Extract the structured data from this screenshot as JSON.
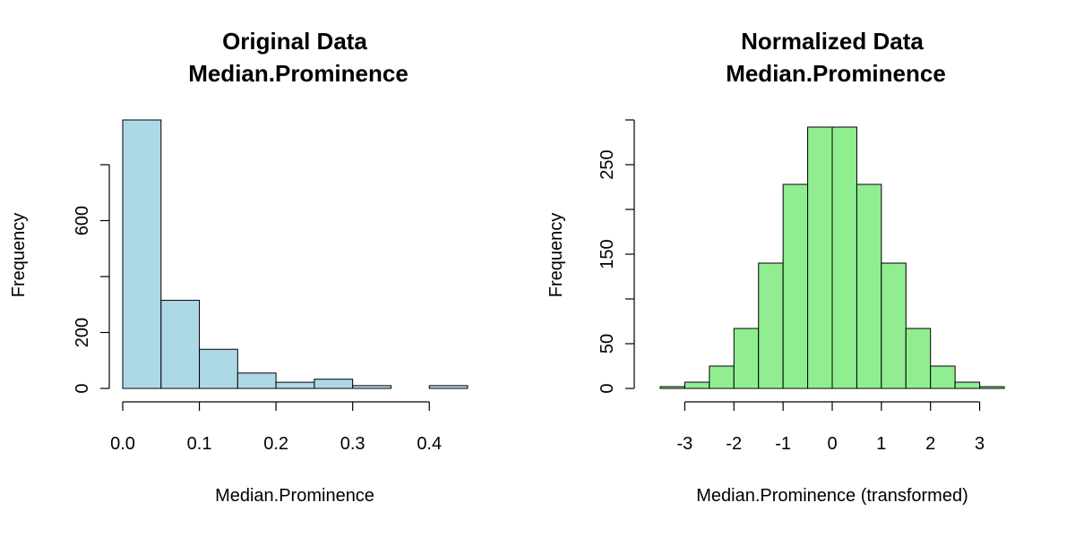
{
  "chart_data": [
    {
      "type": "bar",
      "title_lines": [
        "Original Data",
        "Median.Prominence"
      ],
      "xlabel": "Median.Prominence",
      "ylabel": "Frequency",
      "bar_color": "#add8e6",
      "bins": [
        [
          0.0,
          0.05
        ],
        [
          0.05,
          0.1
        ],
        [
          0.1,
          0.15
        ],
        [
          0.15,
          0.2
        ],
        [
          0.2,
          0.25
        ],
        [
          0.25,
          0.3
        ],
        [
          0.3,
          0.35
        ],
        [
          0.35,
          0.4
        ],
        [
          0.4,
          0.45
        ]
      ],
      "values": [
        960,
        315,
        140,
        55,
        22,
        33,
        10,
        0,
        10
      ],
      "xlim": [
        0.0,
        0.45
      ],
      "ylim": [
        0,
        960
      ],
      "x_ticks": [
        0.0,
        0.1,
        0.2,
        0.3,
        0.4
      ],
      "x_tick_labels": [
        "0.0",
        "0.1",
        "0.2",
        "0.3",
        "0.4"
      ],
      "y_ticks": [
        0,
        200,
        400,
        600,
        800
      ],
      "y_tick_labels": [
        "0",
        "200",
        "",
        "600",
        ""
      ]
    },
    {
      "type": "bar",
      "title_lines": [
        "Normalized Data",
        "Median.Prominence"
      ],
      "xlabel": "Median.Prominence (transformed)",
      "ylabel": "Frequency",
      "bar_color": "#90ee90",
      "bins": [
        [
          -3.5,
          -3.0
        ],
        [
          -3.0,
          -2.5
        ],
        [
          -2.5,
          -2.0
        ],
        [
          -2.0,
          -1.5
        ],
        [
          -1.5,
          -1.0
        ],
        [
          -1.0,
          -0.5
        ],
        [
          -0.5,
          0.0
        ],
        [
          0.0,
          0.5
        ],
        [
          0.5,
          1.0
        ],
        [
          1.0,
          1.5
        ],
        [
          1.5,
          2.0
        ],
        [
          2.0,
          2.5
        ],
        [
          2.5,
          3.0
        ],
        [
          3.0,
          3.5
        ]
      ],
      "values": [
        2,
        7,
        25,
        67,
        140,
        228,
        292,
        292,
        228,
        140,
        67,
        25,
        7,
        2
      ],
      "xlim": [
        -3.5,
        3.5
      ],
      "ylim": [
        0,
        300
      ],
      "x_ticks": [
        -3,
        -2,
        -1,
        0,
        1,
        2,
        3
      ],
      "x_tick_labels": [
        "-3",
        "-2",
        "-1",
        "0",
        "1",
        "2",
        "3"
      ],
      "y_ticks": [
        0,
        50,
        100,
        150,
        200,
        250,
        300
      ],
      "y_tick_labels": [
        "0",
        "50",
        "",
        "150",
        "",
        "250",
        ""
      ]
    }
  ]
}
